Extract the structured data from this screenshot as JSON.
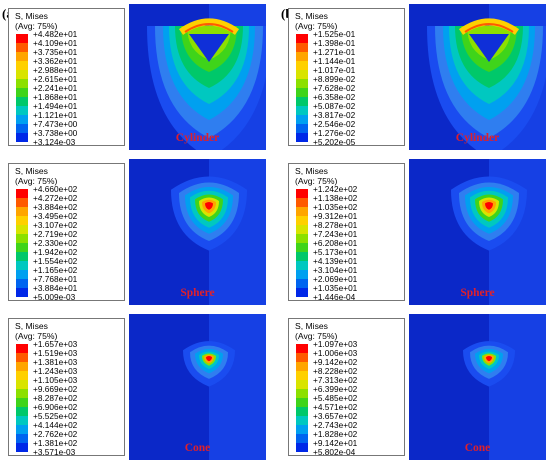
{
  "columns": [
    {
      "label": "(a)",
      "panels": [
        {
          "name": "cylinder",
          "title": "S, Mises",
          "subtitle": "(Avg: 75%)",
          "values": [
            "+4.482e+01",
            "+4.109e+01",
            "+3.735e+01",
            "+3.362e+01",
            "+2.988e+01",
            "+2.615e+01",
            "+2.241e+01",
            "+1.868e+01",
            "+1.494e+01",
            "+1.121e+01",
            "+7.473e+00",
            "+3.738e+00",
            "+3.124e-03"
          ],
          "model_label": "Cylinder"
        },
        {
          "name": "sphere",
          "title": "S, Mises",
          "subtitle": "(Avg: 75%)",
          "values": [
            "+4.660e+02",
            "+4.272e+02",
            "+3.884e+02",
            "+3.495e+02",
            "+3.107e+02",
            "+2.719e+02",
            "+2.330e+02",
            "+1.942e+02",
            "+1.554e+02",
            "+1.165e+02",
            "+7.768e+01",
            "+3.884e+01",
            "+5.009e-03"
          ],
          "model_label": "Sphere"
        },
        {
          "name": "cone",
          "title": "S, Mises",
          "subtitle": "(Avg: 75%)",
          "values": [
            "+1.657e+03",
            "+1.519e+03",
            "+1.381e+03",
            "+1.243e+03",
            "+1.105e+03",
            "+9.669e+02",
            "+8.287e+02",
            "+6.906e+02",
            "+5.525e+02",
            "+4.144e+02",
            "+2.762e+02",
            "+1.381e+02",
            "+3.571e-03"
          ],
          "model_label": "Cone"
        }
      ]
    },
    {
      "label": "(b)",
      "panels": [
        {
          "name": "cylinder",
          "title": "S, Mises",
          "subtitle": "(Avg: 75%)",
          "values": [
            "+1.525e-01",
            "+1.398e-01",
            "+1.271e-01",
            "+1.144e-01",
            "+1.017e-01",
            "+8.899e-02",
            "+7.628e-02",
            "+6.358e-02",
            "+5.087e-02",
            "+3.817e-02",
            "+2.546e-02",
            "+1.276e-02",
            "+5.202e-05"
          ],
          "model_label": "Cylinder"
        },
        {
          "name": "sphere",
          "title": "S, Mises",
          "subtitle": "(Avg: 75%)",
          "values": [
            "+1.242e+02",
            "+1.138e+02",
            "+1.035e+02",
            "+9.312e+01",
            "+8.278e+01",
            "+7.243e+01",
            "+6.208e+01",
            "+5.173e+01",
            "+4.139e+01",
            "+3.104e+01",
            "+2.069e+01",
            "+1.035e+01",
            "+1.446e-04"
          ],
          "model_label": "Sphere"
        },
        {
          "name": "cone",
          "title": "S, Mises",
          "subtitle": "(Avg: 75%)",
          "values": [
            "+1.097e+03",
            "+1.006e+03",
            "+9.142e+02",
            "+8.228e+02",
            "+7.313e+02",
            "+6.399e+02",
            "+5.485e+02",
            "+4.571e+02",
            "+3.657e+02",
            "+2.743e+02",
            "+1.828e+02",
            "+9.142e+01",
            "+5.802e-04"
          ],
          "model_label": "Cone"
        }
      ]
    }
  ],
  "colormap": [
    "#ff0000",
    "#ff5a00",
    "#ffa500",
    "#ffd000",
    "#d8e400",
    "#8ce000",
    "#3fd41a",
    "#00c86a",
    "#00c8c0",
    "#00a0f0",
    "#0064f0",
    "#0028e8"
  ],
  "background_color": "#0f2fd8"
}
